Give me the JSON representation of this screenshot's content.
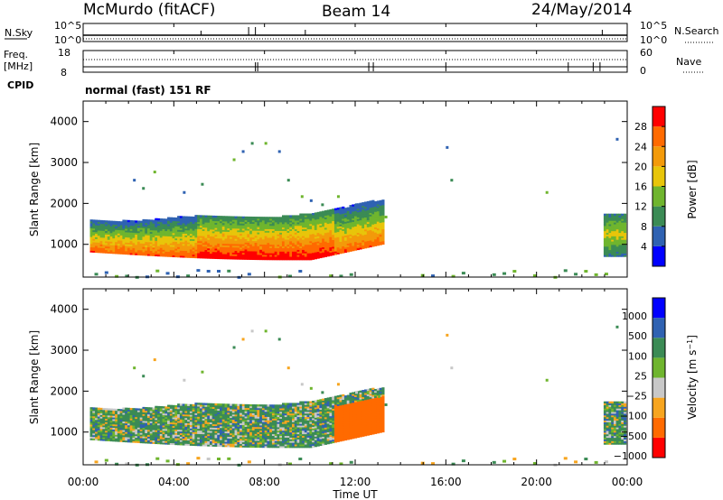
{
  "header": {
    "station": "McMurdo (fitACF)",
    "beam": "Beam 14",
    "date": "24/May/2014"
  },
  "noise_panel": {
    "left_label": "N.Sky",
    "left_ticks": [
      "10^5",
      "10^0"
    ],
    "right_label": "N.Search",
    "right_ticks": [
      "10^5",
      "10^0"
    ]
  },
  "freq_panel": {
    "left_label_line1": "Freq.",
    "left_label_line2": "[MHz]",
    "left_ticks": [
      "18",
      "8"
    ],
    "right_label": "Nave",
    "right_ticks": [
      "60",
      "0"
    ],
    "cpid_label": "CPID"
  },
  "mode_text": "normal (fast) 151 RF",
  "xaxis": {
    "label": "Time UT",
    "ticks": [
      "00:00",
      "04:00",
      "08:00",
      "12:00",
      "16:00",
      "20:00",
      "00:00"
    ]
  },
  "colors": {
    "power": [
      "#0000ff",
      "#2f62b2",
      "#3b8b55",
      "#6fb52e",
      "#e8c50a",
      "#f39a0a",
      "#ff6a00",
      "#ff0000"
    ],
    "velocity": [
      "#ff0000",
      "#ff6a00",
      "#f7a51f",
      "#c8c8c8",
      "#6fb52e",
      "#3b8b55",
      "#2f62b2",
      "#0000ff"
    ]
  },
  "chart_data": [
    {
      "type": "heatmap",
      "name": "power",
      "ylabel": "Slant Range [km]",
      "xlabel": "Time UT",
      "ylim": [
        200,
        4500
      ],
      "xlim_hours": [
        0,
        24
      ],
      "yticks": [
        "1000",
        "2000",
        "3000",
        "4000"
      ],
      "colorbar": {
        "label": "Power [dB]",
        "range": [
          0,
          32
        ],
        "ticks": [
          "4",
          "8",
          "12",
          "16",
          "20",
          "24",
          "28"
        ]
      },
      "bands": [
        {
          "t0": 0.0,
          "t1": 13.2,
          "note": "main echo band",
          "range_low_km": [
            800,
            820,
            640,
            560,
            600,
            700,
            900
          ],
          "range_high_km": [
            1620,
            1500,
            1550,
            1750,
            1800,
            1800,
            2000
          ],
          "peak_db": 30
        },
        {
          "t0": 22.9,
          "t1": 24.0,
          "note": "late echoes",
          "range_low_km": [
            700,
            800
          ],
          "range_high_km": [
            1700,
            1800
          ],
          "peak_db": 14
        }
      ]
    },
    {
      "type": "heatmap",
      "name": "velocity",
      "ylabel": "Slant Range [km]",
      "xlabel": "Time UT",
      "ylim": [
        200,
        4500
      ],
      "xlim_hours": [
        0,
        24
      ],
      "yticks": [
        "1000",
        "2000",
        "3000",
        "4000"
      ],
      "colorbar": {
        "label": "Velocity [m s^-1]",
        "levels": [
          "1000",
          "500",
          "100",
          "25",
          "-25",
          "-100",
          "-500",
          "-1000"
        ]
      }
    }
  ]
}
